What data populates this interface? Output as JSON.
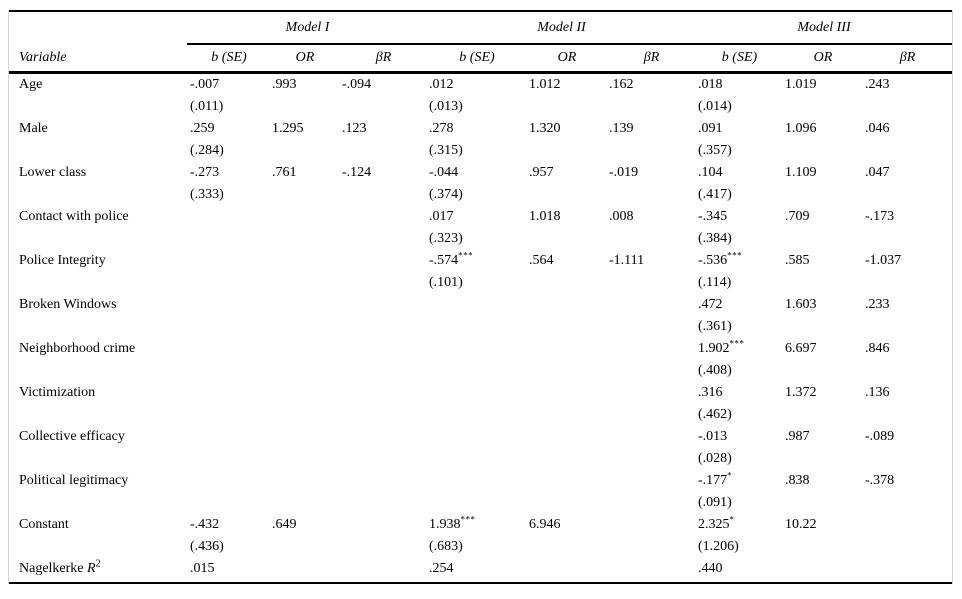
{
  "table": {
    "variable_header": "Variable",
    "models": [
      "Model I",
      "Model II",
      "Model III"
    ],
    "sub_headers": [
      "b (SE)",
      "OR",
      "βR"
    ],
    "rows": [
      {
        "variable": "Age",
        "models": [
          {
            "b": "-.007",
            "se": "(.011)",
            "or": ".993",
            "br": "-.094"
          },
          {
            "b": ".012",
            "se": "(.013)",
            "or": "1.012",
            "br": ".162"
          },
          {
            "b": ".018",
            "se": "(.014)",
            "or": "1.019",
            "br": ".243"
          }
        ]
      },
      {
        "variable": "Male",
        "models": [
          {
            "b": ".259",
            "se": "(.284)",
            "or": "1.295",
            "br": ".123"
          },
          {
            "b": ".278",
            "se": "(.315)",
            "or": "1.320",
            "br": ".139"
          },
          {
            "b": ".091",
            "se": "(.357)",
            "or": "1.096",
            "br": ".046"
          }
        ]
      },
      {
        "variable": "Lower class",
        "models": [
          {
            "b": "-.273",
            "se": "(.333)",
            "or": ".761",
            "br": "-.124"
          },
          {
            "b": "-.044",
            "se": "(.374)",
            "or": ".957",
            "br": "-.019"
          },
          {
            "b": ".104",
            "se": "(.417)",
            "or": "1.109",
            "br": ".047"
          }
        ]
      },
      {
        "variable": "Contact with police",
        "models": [
          {},
          {
            "b": ".017",
            "se": "(.323)",
            "or": "1.018",
            "br": ".008"
          },
          {
            "b": "-.345",
            "se": "(.384)",
            "or": ".709",
            "br": "-.173"
          }
        ]
      },
      {
        "variable": "Police Integrity",
        "models": [
          {},
          {
            "b": "-.574",
            "b_sup": "***",
            "se": "(.101)",
            "or": ".564",
            "br": "-1.111"
          },
          {
            "b": "-.536",
            "b_sup": "***",
            "se": "(.114)",
            "or": ".585",
            "br": "-1.037"
          }
        ]
      },
      {
        "variable": "Broken Windows",
        "models": [
          {},
          {},
          {
            "b": ".472",
            "se": "(.361)",
            "or": "1.603",
            "br": ".233"
          }
        ]
      },
      {
        "variable": "Neighborhood crime",
        "models": [
          {},
          {},
          {
            "b": "1.902",
            "b_sup": "***",
            "se": "(.408)",
            "or": "6.697",
            "br": ".846"
          }
        ]
      },
      {
        "variable": "Victimization",
        "models": [
          {},
          {},
          {
            "b": ".316",
            "se": "(.462)",
            "or": "1.372",
            "br": ".136"
          }
        ]
      },
      {
        "variable": "Collective efficacy",
        "models": [
          {},
          {},
          {
            "b": "-.013",
            "se": "(.028)",
            "or": ".987",
            "br": "-.089"
          }
        ]
      },
      {
        "variable": "Political legitimacy",
        "models": [
          {},
          {},
          {
            "b": "-.177",
            "b_sup": "*",
            "se": "(.091)",
            "or": ".838",
            "br": "-.378"
          }
        ]
      },
      {
        "variable": "Constant",
        "models": [
          {
            "b": "-.432",
            "se": "(.436)",
            "or": ".649"
          },
          {
            "b": "1.938",
            "b_sup": "***",
            "se": "(.683)",
            "or": "6.946"
          },
          {
            "b": "2.325",
            "b_sup": "*",
            "se": "(1.206)",
            "or": "10.22"
          }
        ]
      },
      {
        "variable": "Nagelkerke",
        "variable_math": "R",
        "variable_sup": "2",
        "single_line": true,
        "models": [
          {
            "b": ".015"
          },
          {
            "b": ".254"
          },
          {
            "b": ".440"
          }
        ]
      }
    ]
  }
}
